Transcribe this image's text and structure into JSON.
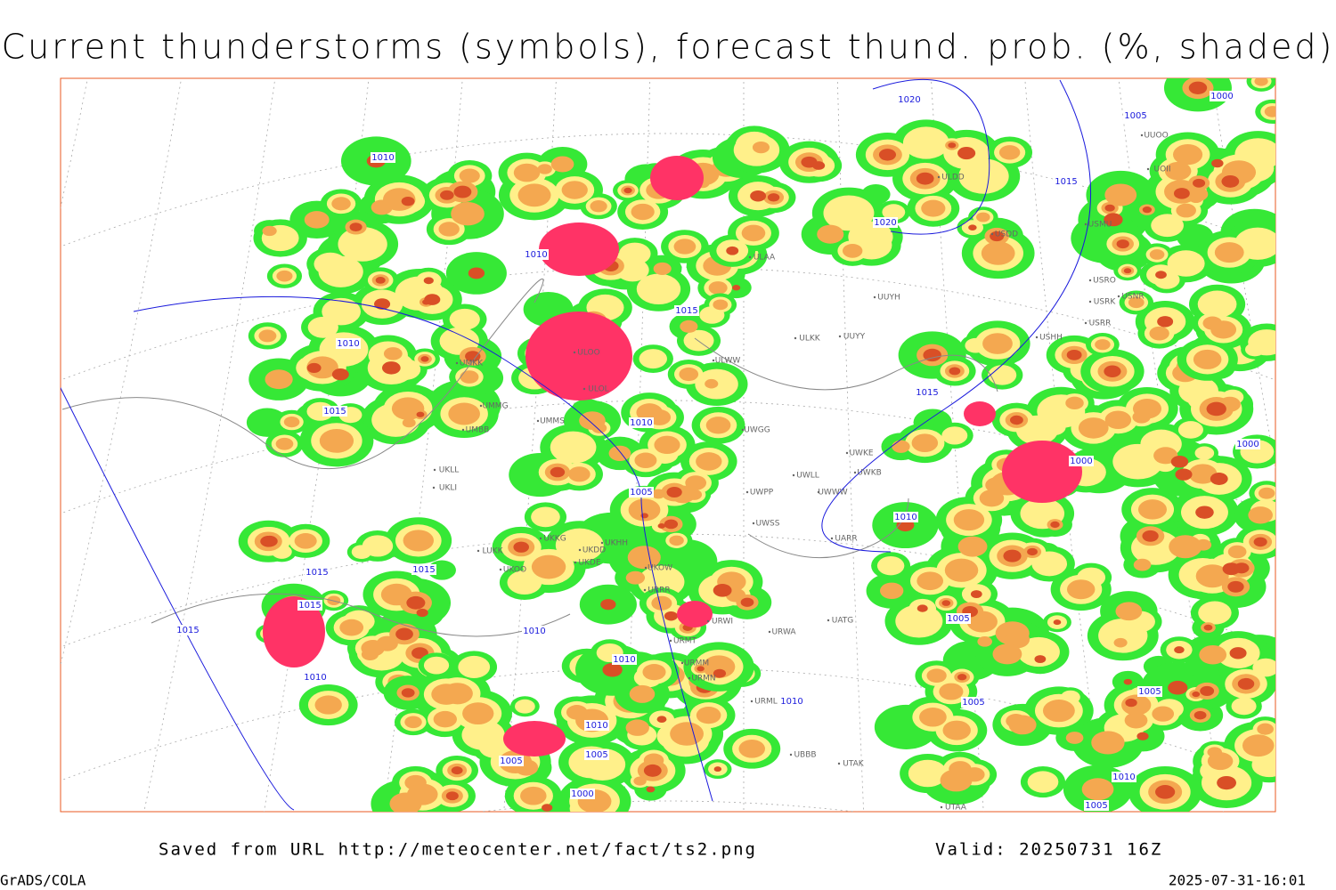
{
  "title": "Current thunderstorms (symbols), forecast thund. prob. (%, shaded)",
  "footer": {
    "source": "Saved from URL http://meteocenter.net/fact/ts2.png",
    "valid": "Valid: 20250731 16Z",
    "software": "GrADS/COLA",
    "timestamp": "2025-07-31-16:01"
  },
  "isobar_labels": [
    "1010",
    "1010",
    "1015",
    "1010",
    "1015",
    "1010",
    "1005",
    "1015",
    "1015",
    "1015",
    "1015",
    "1010",
    "1010",
    "1010",
    "1010",
    "1005",
    "1005",
    "1000",
    "1010",
    "1020",
    "1020",
    "1015",
    "1005",
    "1000",
    "1015",
    "1010",
    "1000",
    "1000",
    "1005",
    "1005",
    "1005",
    "1010",
    "1005"
  ],
  "stations": [
    "ULAA",
    "UUYH",
    "ULKK",
    "UUYY",
    "ULWW",
    "ULOO",
    "ULOL",
    "UMKK",
    "UMMG",
    "UMBB",
    "UMMS",
    "ULDD",
    "USDD",
    "USMU",
    "USRO",
    "USNR",
    "USRK",
    "USRR",
    "USHH",
    "UUOO",
    "UOII",
    "UWGG",
    "UWKE",
    "UWKB",
    "UWLL",
    "UWWW",
    "UWPP",
    "UWSS",
    "UARR",
    "UKHH",
    "UKKG",
    "UKDD",
    "UKDE",
    "UKOO",
    "UKOW",
    "LUKK",
    "UKLL",
    "UKLI",
    "URRR",
    "URWI",
    "URWA",
    "UATG",
    "URMT",
    "URMM",
    "URMN",
    "URML",
    "UBBB",
    "UTAK",
    "UTAA"
  ]
}
